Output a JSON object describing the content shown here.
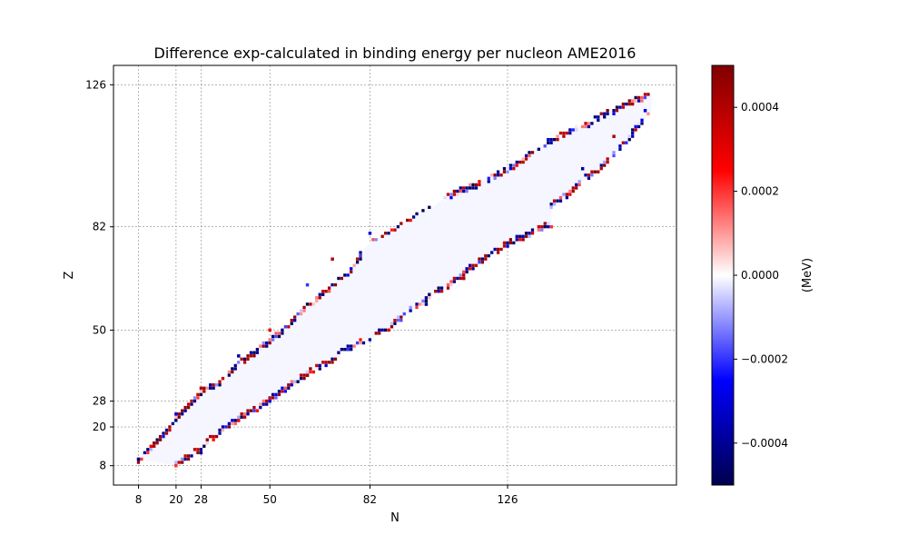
{
  "chart_data": {
    "type": "heatmap",
    "title": "Difference exp-calculated in binding energy per nucleon AME2016",
    "xlabel": "N",
    "ylabel": "Z",
    "x_ticks": [
      8,
      20,
      28,
      50,
      82,
      126
    ],
    "y_ticks": [
      8,
      20,
      28,
      50,
      82,
      126
    ],
    "xlim": [
      0,
      180
    ],
    "ylim": [
      2,
      132
    ],
    "grid": true,
    "grid_style": "dashed gray at magic numbers",
    "colormap": "seismic",
    "colorbar": {
      "label": "(MeV)",
      "range": [
        -0.0005,
        0.0005
      ],
      "ticks": [
        -0.0004,
        -0.0002,
        0.0,
        0.0002,
        0.0004
      ],
      "tick_labels": [
        "−0.0004",
        "−0.0002",
        "0.0000",
        "0.0002",
        "0.0004"
      ]
    },
    "data_description_points": [
      {
        "N": 8,
        "Z": 10,
        "diff": -0.0004
      },
      {
        "N": 12,
        "Z": 14,
        "diff": 0.0003
      },
      {
        "N": 20,
        "Z": 24,
        "diff": -0.0003
      },
      {
        "N": 28,
        "Z": 32,
        "diff": 0.0004
      },
      {
        "N": 40,
        "Z": 42,
        "diff": -0.0004
      },
      {
        "N": 50,
        "Z": 50,
        "diff": 0.0003
      },
      {
        "N": 62,
        "Z": 64,
        "diff": -0.0002
      },
      {
        "N": 70,
        "Z": 72,
        "diff": 0.0004
      },
      {
        "N": 82,
        "Z": 80,
        "diff": -0.0003
      },
      {
        "N": 20,
        "Z": 8,
        "diff": 0.0002
      },
      {
        "N": 28,
        "Z": 12,
        "diff": -0.0004
      },
      {
        "N": 40,
        "Z": 22,
        "diff": 0.0003
      },
      {
        "N": 50,
        "Z": 28,
        "diff": -0.0003
      },
      {
        "N": 62,
        "Z": 36,
        "diff": 0.0004
      },
      {
        "N": 75,
        "Z": 44,
        "diff": -0.0002
      },
      {
        "N": 88,
        "Z": 50,
        "diff": 0.0003
      },
      {
        "N": 100,
        "Z": 58,
        "diff": -0.0004
      },
      {
        "N": 112,
        "Z": 66,
        "diff": 0.0004
      },
      {
        "N": 126,
        "Z": 76,
        "diff": -0.0003
      },
      {
        "N": 140,
        "Z": 82,
        "diff": 0.0002
      },
      {
        "N": 150,
        "Z": 100,
        "diff": -0.0004
      },
      {
        "N": 160,
        "Z": 110,
        "diff": 0.0004
      },
      {
        "N": 170,
        "Z": 118,
        "diff": -0.0003
      }
    ]
  }
}
